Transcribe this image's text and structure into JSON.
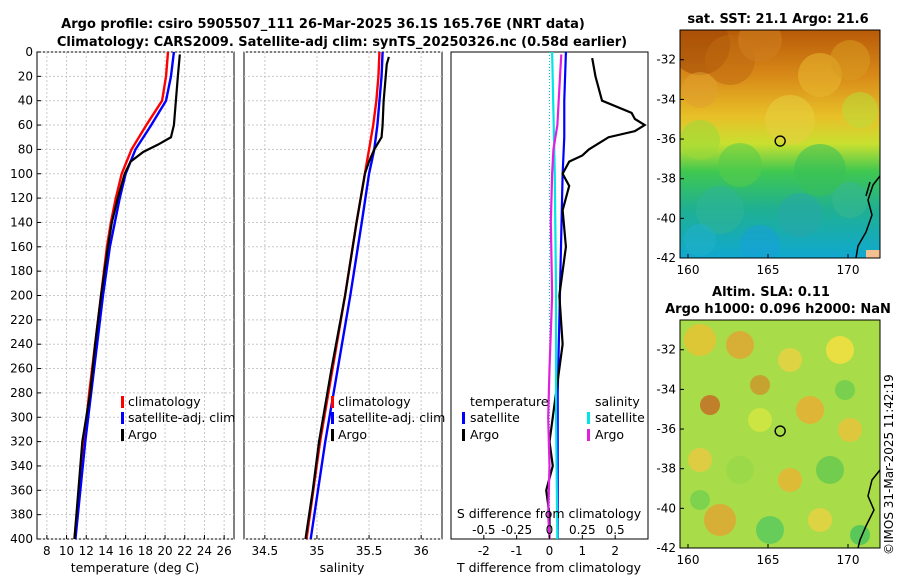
{
  "titles": {
    "line1": "Argo profile: csiro 5905507_111 26-Mar-2025 36.1S 165.76E (NRT data)",
    "line2": "Climatology: CARS2009. Satellite-adj clim: synTS_20250326.nc (0.58d earlier)"
  },
  "credit": "©IMOS 31-Mar-2025 11:42:19",
  "colors": {
    "clim": "#ff0000",
    "sat": "#0000ff",
    "argo": "#000000",
    "sal_sat": "#00e5e5",
    "sal_argo": "#e020e0"
  },
  "chart_data": [
    {
      "type": "line",
      "id": "temperature",
      "xlabel": "temperature (deg C)",
      "ylabel": "",
      "xlim": [
        7,
        27
      ],
      "ylim": [
        0,
        400
      ],
      "y_reversed": true,
      "xticks": [
        "8",
        "10",
        "12",
        "14",
        "16",
        "18",
        "20",
        "22",
        "24",
        "26"
      ],
      "xtick_values": [
        8,
        10,
        12,
        14,
        16,
        18,
        20,
        22,
        24,
        26
      ],
      "yticks": [
        "0",
        "20",
        "40",
        "60",
        "80",
        "100",
        "120",
        "140",
        "160",
        "180",
        "200",
        "220",
        "240",
        "260",
        "280",
        "300",
        "320",
        "340",
        "360",
        "380",
        "400"
      ],
      "ytick_values": [
        0,
        20,
        40,
        60,
        80,
        100,
        120,
        140,
        160,
        180,
        200,
        220,
        240,
        260,
        280,
        300,
        320,
        340,
        360,
        380,
        400
      ],
      "grid": true,
      "legend": [
        "climatology",
        "satellite-adj. clim",
        "Argo"
      ],
      "legend_position": "lower-right",
      "series": [
        {
          "name": "climatology",
          "depth": [
            0,
            20,
            40,
            60,
            80,
            100,
            120,
            140,
            160,
            200,
            240,
            280,
            320,
            360,
            400
          ],
          "values": [
            20.3,
            20.1,
            19.7,
            18.1,
            16.6,
            15.6,
            15.0,
            14.5,
            14.1,
            13.5,
            12.9,
            12.3,
            11.8,
            11.3,
            10.8
          ]
        },
        {
          "name": "satellite-adj. clim",
          "depth": [
            0,
            20,
            40,
            60,
            80,
            100,
            120,
            140,
            160,
            200,
            240,
            280,
            320,
            360,
            400
          ],
          "values": [
            20.9,
            20.6,
            20.1,
            18.6,
            17.0,
            16.0,
            15.4,
            14.9,
            14.4,
            13.7,
            13.1,
            12.5,
            11.9,
            11.4,
            10.9
          ]
        },
        {
          "name": "Argo",
          "depth": [
            2,
            20,
            40,
            60,
            70,
            76,
            82,
            90,
            100,
            120,
            140,
            160,
            200,
            240,
            280,
            300,
            320,
            360,
            400
          ],
          "values": [
            21.5,
            21.3,
            21.1,
            20.9,
            20.6,
            19.3,
            17.8,
            16.5,
            15.9,
            15.2,
            14.6,
            14.2,
            13.5,
            12.9,
            12.4,
            12.0,
            11.6,
            11.2,
            10.8
          ]
        }
      ]
    },
    {
      "type": "line",
      "id": "salinity",
      "xlabel": "salinity",
      "xlim": [
        34.3,
        36.2
      ],
      "ylim": [
        0,
        400
      ],
      "y_reversed": true,
      "xticks": [
        "34.5",
        "35",
        "35.5",
        "36"
      ],
      "xtick_values": [
        34.5,
        35,
        35.5,
        36
      ],
      "grid": true,
      "legend": [
        "climatology",
        "satellite-adj. clim",
        "Argo"
      ],
      "legend_position": "lower-right",
      "series": [
        {
          "name": "climatology",
          "depth": [
            0,
            20,
            40,
            60,
            80,
            100,
            140,
            200,
            260,
            320,
            400
          ],
          "values": [
            35.6,
            35.59,
            35.57,
            35.54,
            35.5,
            35.46,
            35.38,
            35.27,
            35.15,
            35.03,
            34.9
          ]
        },
        {
          "name": "satellite-adj. clim",
          "depth": [
            0,
            20,
            40,
            60,
            80,
            100,
            140,
            200,
            260,
            320,
            400
          ],
          "values": [
            35.63,
            35.62,
            35.6,
            35.58,
            35.55,
            35.5,
            35.43,
            35.32,
            35.2,
            35.08,
            34.94
          ]
        },
        {
          "name": "Argo",
          "depth": [
            4,
            10,
            20,
            40,
            60,
            70,
            80,
            90,
            100,
            140,
            200,
            260,
            320,
            360,
            400
          ],
          "values": [
            35.69,
            35.67,
            35.66,
            35.64,
            35.63,
            35.62,
            35.55,
            35.5,
            35.46,
            35.38,
            35.27,
            35.14,
            35.02,
            34.96,
            34.89
          ]
        }
      ]
    },
    {
      "type": "line",
      "id": "differences",
      "xlabel": "T difference from climatology",
      "xlabel_top": "S difference from climatology",
      "xlim": [
        -3,
        3
      ],
      "xlim_top": [
        -0.75,
        0.75
      ],
      "ylim": [
        0,
        400
      ],
      "y_reversed": true,
      "xticks": [
        "-2",
        "-1",
        "0",
        "1",
        "2"
      ],
      "xtick_values": [
        -2,
        -1,
        0,
        1,
        2
      ],
      "xticks_top": [
        "-0.5",
        "-0.25",
        "0",
        "0.25",
        "0.5"
      ],
      "xtick_values_top": [
        -0.5,
        -0.25,
        0,
        0.25,
        0.5
      ],
      "legend_left_title": "temperature",
      "legend_left": [
        "satellite",
        "Argo"
      ],
      "legend_right_title": "salinity",
      "legend_right": [
        "satellite",
        "Argo"
      ],
      "series": [
        {
          "name": "T satellite",
          "depth": [
            0,
            40,
            70,
            100,
            160,
            220,
            280,
            340,
            400
          ],
          "values": [
            0.5,
            0.45,
            0.45,
            0.4,
            0.35,
            0.3,
            0.25,
            0.25,
            0.25
          ]
        },
        {
          "name": "T Argo",
          "depth": [
            5,
            20,
            40,
            50,
            55,
            60,
            65,
            70,
            75,
            80,
            85,
            90,
            100,
            110,
            130,
            160,
            200,
            240,
            280,
            300,
            320,
            340,
            360,
            380,
            400
          ],
          "values": [
            1.3,
            1.4,
            1.6,
            2.5,
            2.6,
            2.9,
            2.6,
            1.8,
            1.5,
            1.2,
            1.0,
            0.6,
            0.4,
            0.6,
            0.4,
            0.5,
            0.3,
            0.4,
            0.2,
            0.1,
            0.0,
            0.1,
            -0.1,
            0.0,
            0.0
          ]
        },
        {
          "name": "S satellite",
          "depth": [
            0,
            100,
            200,
            300,
            400
          ],
          "values": [
            0.02,
            0.04,
            0.05,
            0.05,
            0.06
          ]
        },
        {
          "name": "S Argo",
          "depth": [
            2,
            20,
            40,
            60,
            80,
            100,
            140,
            200,
            260,
            300,
            340,
            380,
            400
          ],
          "values": [
            0.09,
            0.08,
            0.07,
            0.06,
            0.03,
            0.02,
            0.01,
            0.02,
            0.0,
            -0.01,
            0.0,
            -0.01,
            0.0
          ]
        }
      ]
    },
    {
      "type": "heatmap",
      "id": "sst_map",
      "title": "sat. SST: 21.1 Argo: 21.6",
      "xlim": [
        159.5,
        172
      ],
      "ylim": [
        -42,
        -30.5
      ],
      "xticks": [
        "160",
        "165",
        "170"
      ],
      "xtick_values": [
        160,
        165,
        170
      ],
      "yticks": [
        "-32",
        "-34",
        "-36",
        "-38",
        "-40",
        "-42"
      ],
      "ytick_values": [
        -32,
        -34,
        -36,
        -38,
        -40,
        -42
      ],
      "marker": {
        "lon": 165.76,
        "lat": -36.1
      }
    },
    {
      "type": "heatmap",
      "id": "sla_map",
      "title": "Altim. SLA: 0.11",
      "subtitle": "Argo h1000: 0.096 h2000: NaN",
      "xlim": [
        159.5,
        172
      ],
      "ylim": [
        -42,
        -30.5
      ],
      "xticks": [
        "160",
        "165",
        "170"
      ],
      "xtick_values": [
        160,
        165,
        170
      ],
      "yticks": [
        "-32",
        "-34",
        "-36",
        "-38",
        "-40",
        "-42"
      ],
      "ytick_values": [
        -32,
        -34,
        -36,
        -38,
        -40,
        -42
      ],
      "marker": {
        "lon": 165.76,
        "lat": -36.1
      }
    }
  ]
}
